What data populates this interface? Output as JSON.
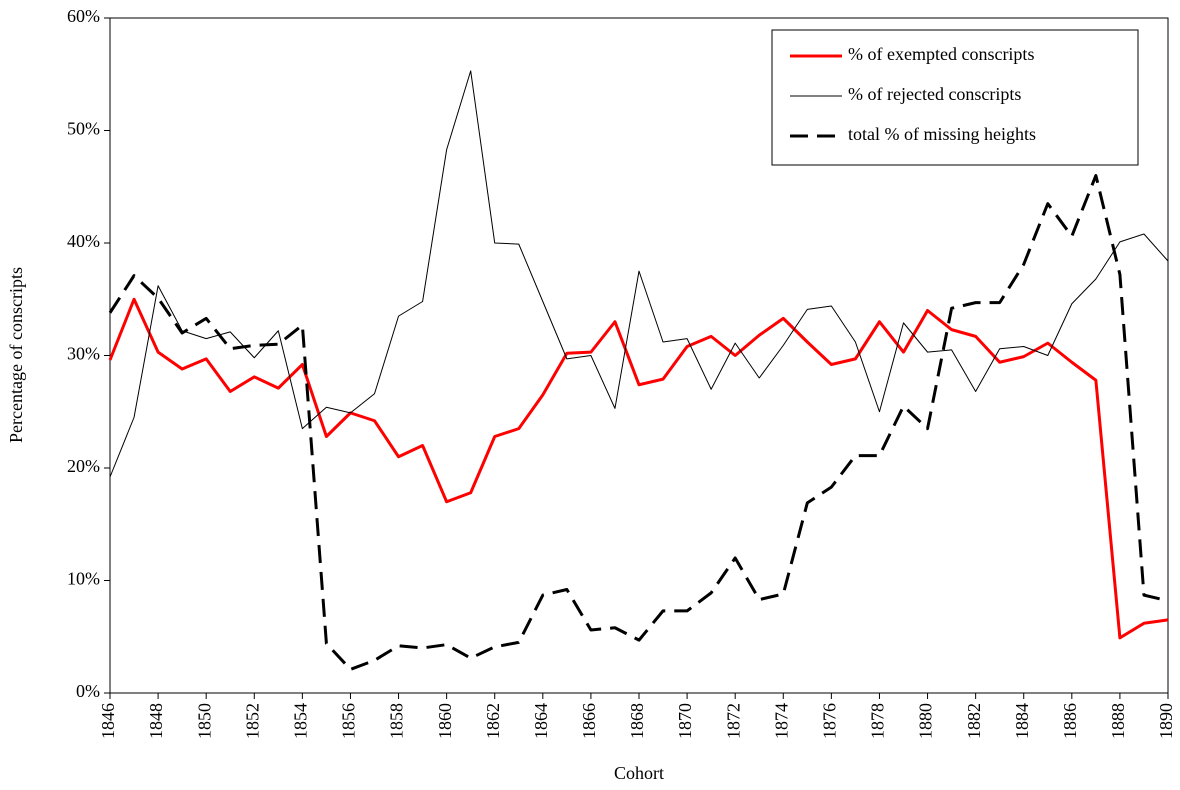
{
  "chart_data": {
    "type": "line",
    "x_label": "Cohort",
    "y_label": "Percentage of conscripts",
    "x": [
      1846,
      1847,
      1848,
      1849,
      1850,
      1851,
      1852,
      1853,
      1854,
      1855,
      1856,
      1857,
      1858,
      1859,
      1860,
      1861,
      1862,
      1863,
      1864,
      1865,
      1866,
      1867,
      1868,
      1869,
      1870,
      1871,
      1872,
      1873,
      1874,
      1875,
      1876,
      1877,
      1878,
      1879,
      1880,
      1881,
      1882,
      1883,
      1884,
      1885,
      1886,
      1887,
      1888,
      1889,
      1890
    ],
    "xlim": [
      1846,
      1890
    ],
    "xticks": [
      1846,
      1848,
      1850,
      1852,
      1854,
      1856,
      1858,
      1860,
      1862,
      1864,
      1866,
      1868,
      1870,
      1872,
      1874,
      1876,
      1878,
      1880,
      1882,
      1884,
      1886,
      1888,
      1890
    ],
    "ylim": [
      0,
      60
    ],
    "yticks": [
      {
        "value": 0,
        "label": "0%"
      },
      {
        "value": 10,
        "label": "10%"
      },
      {
        "value": 20,
        "label": "20%"
      },
      {
        "value": 30,
        "label": "30%"
      },
      {
        "value": 40,
        "label": "40%"
      },
      {
        "value": 50,
        "label": "50%"
      },
      {
        "value": 60,
        "label": "60%"
      }
    ],
    "grid": false,
    "legend": "upper right",
    "series": [
      {
        "name": "% of exempted conscripts",
        "color": "#ff0000",
        "line_width": 3,
        "dashed": false,
        "values": [
          29.6,
          35,
          30.3,
          28.8,
          29.7,
          26.8,
          28.1,
          27.1,
          29.2,
          22.8,
          24.9,
          24.2,
          21,
          22,
          17,
          17.8,
          22.8,
          23.5,
          26.5,
          30.2,
          30.3,
          33,
          27.4,
          27.9,
          30.8,
          31.7,
          30,
          31.8,
          33.3,
          31.2,
          29.2,
          29.7,
          33,
          30.3,
          34,
          32.3,
          31.7,
          29.4,
          29.9,
          31.1,
          29.4,
          27.8,
          4.9,
          6.2,
          6.5
        ]
      },
      {
        "name": "% of rejected conscripts",
        "color": "#000000",
        "line_width": 1,
        "dashed": false,
        "values": [
          19.2,
          24.5,
          36.2,
          32.2,
          31.5,
          32.1,
          29.8,
          32.2,
          23.5,
          25.4,
          24.9,
          26.6,
          33.5,
          34.8,
          48.3,
          55.3,
          40,
          39.9,
          34.8,
          29.7,
          30,
          25.3,
          37.5,
          31.2,
          31.5,
          27,
          31.1,
          28,
          30.9,
          34.1,
          34.4,
          31.2,
          25,
          32.9,
          30.3,
          30.5,
          26.8,
          30.6,
          30.8,
          30,
          34.6,
          36.8,
          40.1,
          40.8,
          38.4
        ]
      },
      {
        "name": "total % of missing heights",
        "color": "#000000",
        "line_width": 3,
        "dashed": true,
        "values": [
          33.8,
          37.1,
          35.1,
          32,
          33.3,
          30.6,
          30.9,
          31,
          32.7,
          4.4,
          2.1,
          2.9,
          4.2,
          4,
          4.3,
          3.1,
          4.1,
          4.5,
          8.7,
          9.2,
          5.6,
          5.8,
          4.7,
          7.3,
          7.3,
          8.9,
          12,
          8.3,
          8.8,
          16.9,
          18.3,
          21.1,
          21.1,
          25.5,
          23.5,
          34.2,
          34.7,
          34.7,
          38.1,
          43.5,
          40.6,
          46,
          37.2,
          8.7,
          8.2
        ]
      }
    ]
  }
}
